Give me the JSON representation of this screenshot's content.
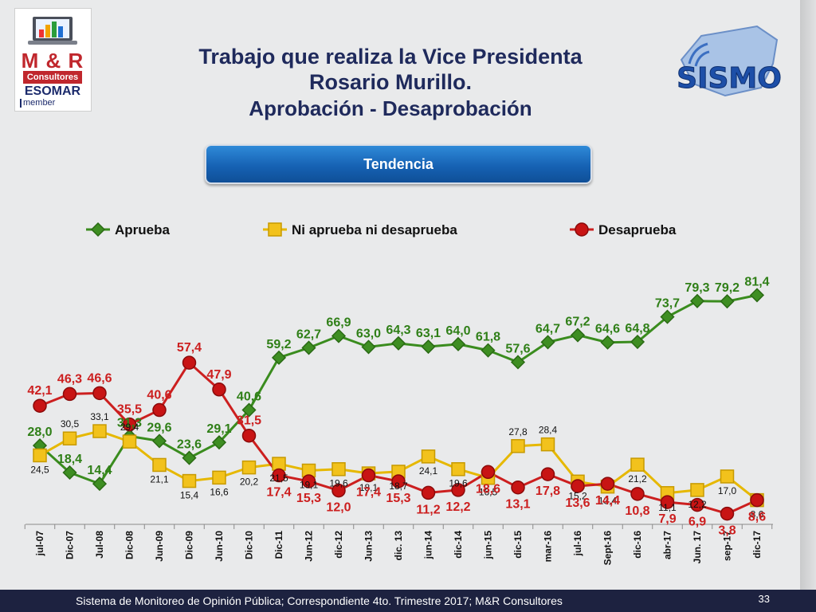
{
  "logo_left": {
    "brand": "M & R",
    "sub": "Consultores",
    "org": "ESOMAR",
    "member": "member"
  },
  "logo_right": {
    "brand": "SISMO"
  },
  "title": {
    "line1": "Trabajo que realiza la  Vice Presidenta",
    "line2": "Rosario Murillo.",
    "line3": "Aprobación - Desaprobación"
  },
  "tendencia_label": "Tendencia",
  "footer": {
    "text": "Sistema de Monitoreo de Opinión Pública; Correspondiente 4to. Trimestre 2017; M&R Consultores",
    "page": "33"
  },
  "colors": {
    "aprueba": "#3a8c1e",
    "ni": "#e6b800",
    "desaprueba": "#cc1f1f",
    "label_green": "#2f7f17",
    "label_red": "#cc1f1f"
  },
  "chart_data": {
    "type": "line",
    "legend_position": "top",
    "grid": false,
    "ylim": [
      0,
      90
    ],
    "categories": [
      "jul-07",
      "Dic-07",
      "Jul-08",
      "Dic-08",
      "Jun-09",
      "Dic-09",
      "Jun-10",
      "Dic-10",
      "Dic-11",
      "Jun-12",
      "dic-12",
      "Jun-13",
      "dic. 13",
      "jun-14",
      "dic-14",
      "jun-15",
      "dic-15",
      "mar-16",
      "jul-16",
      "Sept-16",
      "dic-16",
      "abr-17",
      "Jun. 17",
      "sep-17",
      "dic-17"
    ],
    "series": [
      {
        "name": "Aprueba",
        "values": [
          28.0,
          18.4,
          14.4,
          31.3,
          29.6,
          23.6,
          29.1,
          40.6,
          59.2,
          62.7,
          66.9,
          63.0,
          64.3,
          63.1,
          64.0,
          61.8,
          57.6,
          64.7,
          67.2,
          64.6,
          64.8,
          73.7,
          79.3,
          79.2,
          81.4
        ],
        "labels": [
          "28,0",
          "18,4",
          "14,4",
          "31,3",
          "29,6",
          "23,6",
          "29,1",
          "40,6",
          "59,2",
          "62,7",
          "66,9",
          "63,0",
          "64,3",
          "63,1",
          "64,0",
          "61,8",
          "57,6",
          "64,7",
          "67,2",
          "64,6",
          "64,8",
          "73,7",
          "79,3",
          "79,2",
          "81,4"
        ]
      },
      {
        "name": "Ni aprueba ni desaprueba",
        "values": [
          24.5,
          30.5,
          33.1,
          29.4,
          21.1,
          15.4,
          16.6,
          20.2,
          21.5,
          19.1,
          19.6,
          18.1,
          18.7,
          24.1,
          19.6,
          16.5,
          27.8,
          28.4,
          15.2,
          13.4,
          21.2,
          11.1,
          12.2,
          17.0,
          8.6
        ],
        "labels": [
          "24,5",
          "30,5",
          "33,1",
          "29,4",
          "21,1",
          "15,4",
          "16,6",
          "20,2",
          "21,5",
          "19,1",
          "19,6",
          "18,1",
          "18,7",
          "24,1",
          "19,6",
          "16,5",
          "27,8",
          "28,4",
          "15,2",
          "13,4",
          "21,2",
          "11,1",
          "12,2",
          "17,0",
          "8,6"
        ]
      },
      {
        "name": "Desaprueba",
        "values": [
          42.1,
          46.3,
          46.6,
          35.5,
          40.6,
          57.4,
          47.9,
          31.5,
          17.4,
          15.3,
          12.0,
          17.4,
          15.3,
          11.2,
          12.2,
          18.6,
          13.1,
          17.8,
          13.6,
          14.4,
          10.8,
          7.9,
          6.9,
          3.8,
          8.6
        ],
        "labels": [
          "42,1",
          "46,3",
          "46,6",
          "35,5",
          "40,6",
          "57,4",
          "47,9",
          "31,5",
          "17,4",
          "15,3",
          "12,0",
          "17,4",
          "15,3",
          "11,2",
          "12,2",
          "18,6",
          "13,1",
          "17,8",
          "13,6",
          "14,4",
          "10,8",
          "7,9",
          "6,9",
          "3,8",
          "8,6"
        ]
      }
    ]
  }
}
